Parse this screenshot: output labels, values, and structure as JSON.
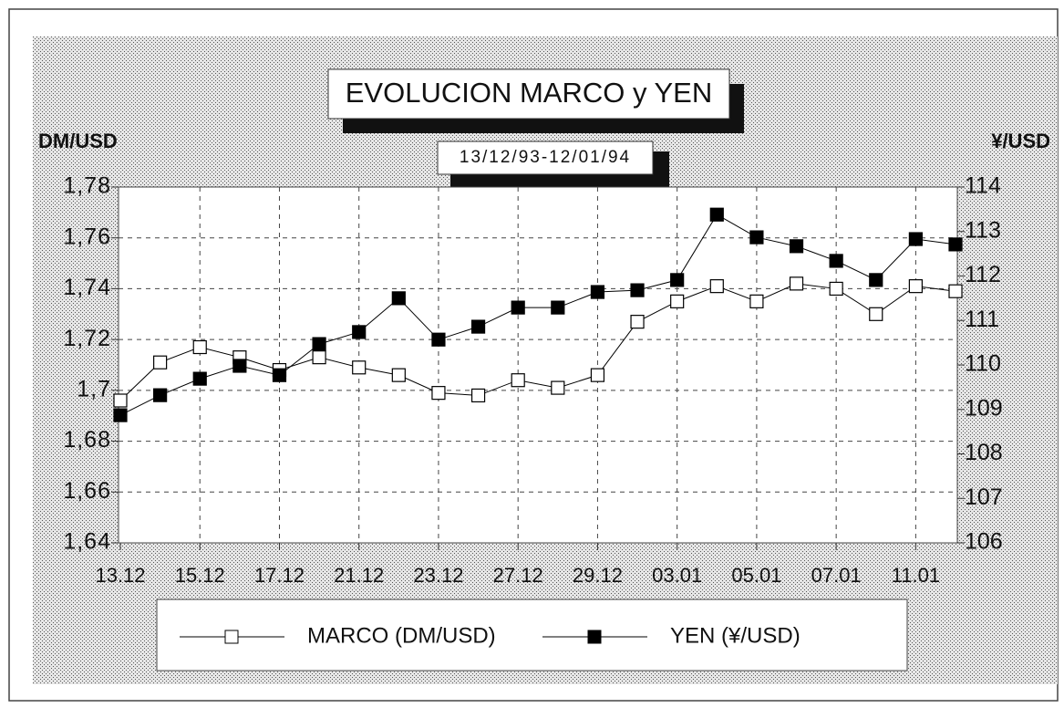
{
  "chart_data": {
    "type": "line",
    "title": "EVOLUCION  MARCO y YEN",
    "subtitle": "13/12/93-12/01/94",
    "y_label": "DM/USD",
    "y2_label": "¥/USD",
    "categories": [
      "13.12",
      null,
      "15.12",
      null,
      "17.12",
      null,
      "21.12",
      null,
      "23.12",
      null,
      "27.12",
      null,
      "29.12",
      null,
      "03.01",
      null,
      "05.01",
      null,
      "07.01",
      null,
      "11.01",
      null
    ],
    "series": [
      {
        "name": "MARCO (DM/USD)",
        "color": "#000000",
        "marker_fill": "#ffffff",
        "axis": "y",
        "values": [
          1.696,
          1.711,
          1.717,
          1.713,
          1.708,
          1.713,
          1.709,
          1.706,
          1.699,
          1.698,
          1.704,
          1.701,
          1.706,
          1.727,
          1.735,
          1.741,
          1.735,
          1.742,
          1.74,
          1.73,
          1.741,
          1.739
        ]
      },
      {
        "name": "YEN (¥/USD)",
        "color": "#000000",
        "marker_fill": "#000000",
        "axis": "y2",
        "values": [
          108.87,
          109.32,
          109.69,
          109.98,
          109.77,
          110.47,
          110.74,
          111.5,
          110.57,
          110.86,
          111.29,
          111.29,
          111.64,
          111.68,
          111.91,
          113.38,
          112.87,
          112.67,
          112.34,
          111.91,
          112.83,
          112.71
        ]
      }
    ],
    "ylim": [
      1.64,
      1.78
    ],
    "yticks": [
      {
        "value": 1.64,
        "label": "1,64"
      },
      {
        "value": 1.66,
        "label": "1,66"
      },
      {
        "value": 1.68,
        "label": "1,68"
      },
      {
        "value": 1.7,
        "label": "1,7"
      },
      {
        "value": 1.72,
        "label": "1,72"
      },
      {
        "value": 1.74,
        "label": "1,74"
      },
      {
        "value": 1.76,
        "label": "1,76"
      },
      {
        "value": 1.78,
        "label": "1,78"
      }
    ],
    "y2lim": [
      106,
      114
    ],
    "y2ticks": [
      106,
      107,
      108,
      109,
      110,
      111,
      112,
      113,
      114
    ],
    "grid": true,
    "legend": "bottom"
  }
}
